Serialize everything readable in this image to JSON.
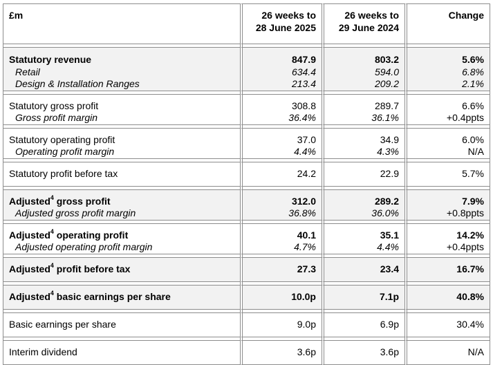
{
  "header": {
    "label": "£m",
    "col1_line1": "26 weeks to",
    "col1_line2": "28 June 2025",
    "col2_line1": "26 weeks to",
    "col2_line2": "29 June 2024",
    "col3": "Change"
  },
  "rows": {
    "revenue": {
      "label": "Statutory revenue",
      "v1": "847.9",
      "v2": "803.2",
      "chg": "5.6%",
      "sub1": {
        "label": "Retail",
        "v1": "634.4",
        "v2": "594.0",
        "chg": "6.8%"
      },
      "sub2": {
        "label": "Design & Installation Ranges",
        "v1": "213.4",
        "v2": "209.2",
        "chg": "2.1%"
      }
    },
    "gross_profit": {
      "label": "Statutory gross profit",
      "v1": "308.8",
      "v2": "289.7",
      "chg": "6.6%",
      "sub": {
        "label": "Gross profit margin",
        "v1": "36.4%",
        "v2": "36.1%",
        "chg": "+0.4ppts"
      }
    },
    "operating_profit": {
      "label": "Statutory operating profit",
      "v1": "37.0",
      "v2": "34.9",
      "chg": "6.0%",
      "sub": {
        "label": "Operating profit margin",
        "v1": "4.4%",
        "v2": "4.3%",
        "chg": "N/A"
      }
    },
    "pbt": {
      "label": "Statutory profit before tax",
      "v1": "24.2",
      "v2": "22.9",
      "chg": "5.7%"
    },
    "adj_gross_profit": {
      "label_pre": "Adjusted",
      "sup": "4",
      "label_post": " gross profit",
      "v1": "312.0",
      "v2": "289.2",
      "chg": "7.9%",
      "sub": {
        "label": "Adjusted gross profit margin",
        "v1": "36.8%",
        "v2": "36.0%",
        "chg": "+0.8ppts"
      }
    },
    "adj_operating_profit": {
      "label_pre": "Adjusted",
      "sup": "4",
      "label_post": " operating profit",
      "v1": "40.1",
      "v2": "35.1",
      "chg": "14.2%",
      "sub": {
        "label": "Adjusted operating profit margin",
        "v1": "4.7%",
        "v2": "4.4%",
        "chg": "+0.4ppts"
      }
    },
    "adj_pbt": {
      "label_pre": "Adjusted",
      "sup": "4",
      "label_post": " profit before tax",
      "v1": "27.3",
      "v2": "23.4",
      "chg": "16.7%"
    },
    "adj_eps": {
      "label_pre": "Adjusted",
      "sup": "4",
      "label_post": " basic earnings per share",
      "v1": "10.0p",
      "v2": "7.1p",
      "chg": "40.8%"
    },
    "basic_eps": {
      "label": "Basic earnings per share",
      "v1": "9.0p",
      "v2": "6.9p",
      "chg": "30.4%"
    },
    "dividend": {
      "label": "Interim dividend",
      "v1": "3.6p",
      "v2": "3.6p",
      "chg": "N/A"
    }
  },
  "colors": {
    "shade": "#f2f2f2",
    "border": "#8c8c8c"
  }
}
